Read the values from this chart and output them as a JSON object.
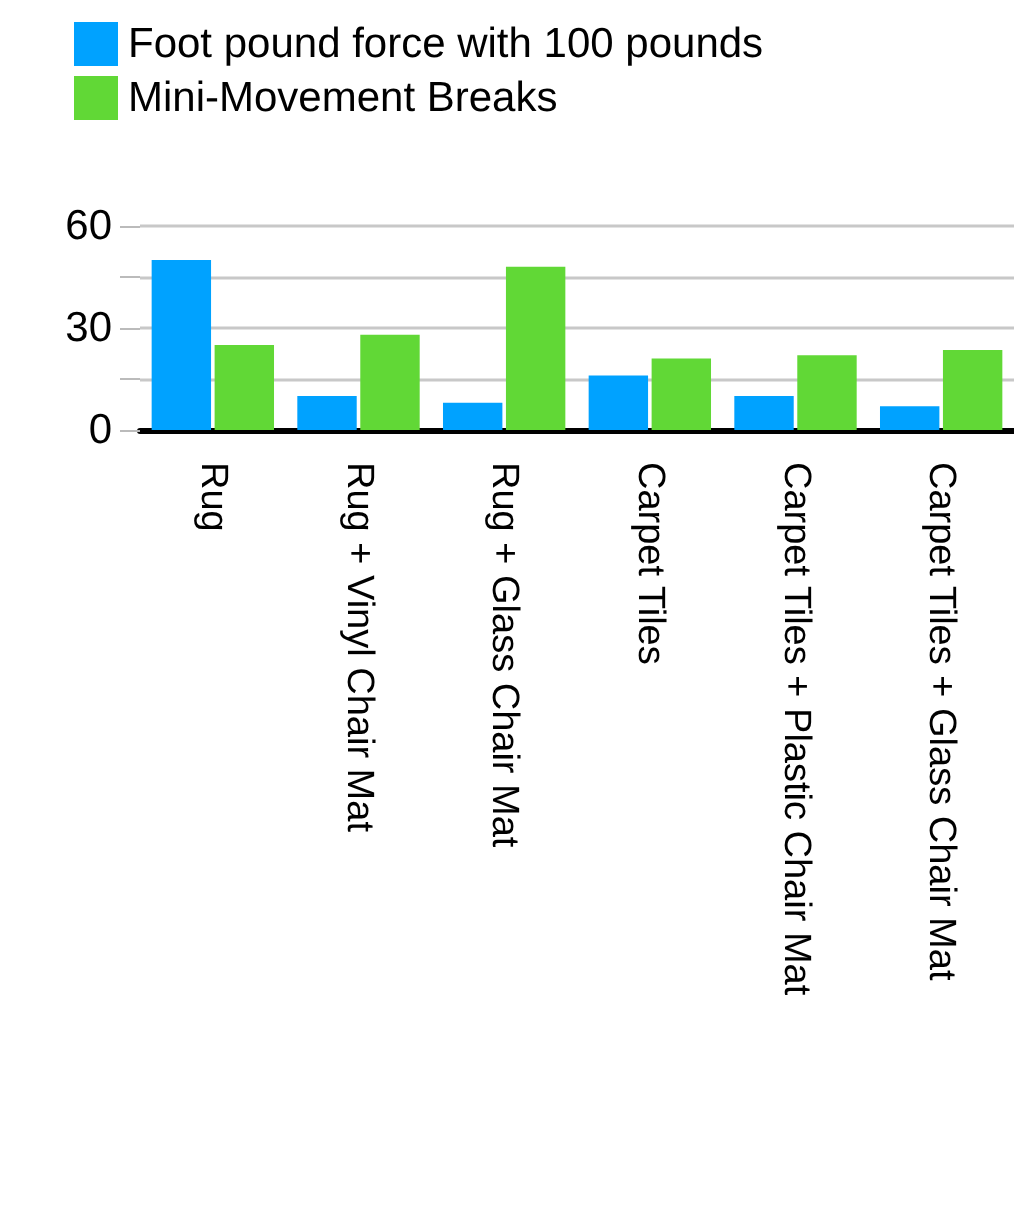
{
  "chart_data": {
    "type": "bar",
    "categories": [
      "Rug",
      "Rug + Vinyl Chair Mat",
      "Rug + Glass Chair Mat",
      "Carpet Tiles",
      "Carpet Tiles + Plastic Chair Mat",
      "Carpet Tiles + Glass Chair Mat"
    ],
    "series": [
      {
        "name": "Foot pound force with 100 pounds",
        "color": "#00a2ff",
        "values": [
          50,
          10,
          8,
          16,
          10,
          7
        ]
      },
      {
        "name": "Mini-Movement Breaks",
        "color": "#61d836",
        "values": [
          25,
          28,
          48,
          21,
          22,
          23.5
        ]
      }
    ],
    "ylim": [
      0,
      60
    ],
    "yticks": [
      0,
      {
        "value": 15,
        "label": null
      },
      30,
      {
        "value": 45,
        "label": null
      },
      60
    ],
    "grid": "y",
    "legend": "top left"
  }
}
